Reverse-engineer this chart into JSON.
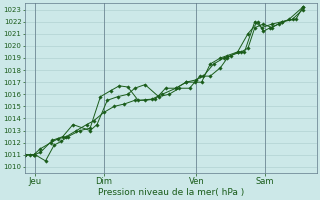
{
  "title": "",
  "xlabel": "Pression niveau de la mer( hPa )",
  "ylabel": "",
  "bg_color": "#cce8e8",
  "grid_color": "#aacccc",
  "line_color": "#1a5c1a",
  "ylim": [
    1009.5,
    1023.5
  ],
  "xlim": [
    0,
    8.5
  ],
  "xtick_labels": [
    "Jeu",
    "Dim",
    "Ven",
    "Sam"
  ],
  "xtick_positions": [
    0.3,
    2.3,
    5.0,
    7.0
  ],
  "vline_positions": [
    0.3,
    2.3,
    5.0,
    7.0
  ],
  "ytick_min": 1010,
  "ytick_max": 1023,
  "line1": [
    [
      0.0,
      1011.0
    ],
    [
      0.15,
      1011.0
    ],
    [
      0.3,
      1011.0
    ],
    [
      0.6,
      1010.5
    ],
    [
      0.85,
      1011.8
    ],
    [
      1.05,
      1012.1
    ],
    [
      1.25,
      1012.5
    ],
    [
      1.6,
      1013.0
    ],
    [
      1.9,
      1013.2
    ],
    [
      2.2,
      1015.8
    ],
    [
      2.5,
      1016.3
    ],
    [
      2.75,
      1016.7
    ],
    [
      3.0,
      1016.6
    ],
    [
      3.3,
      1015.5
    ],
    [
      3.7,
      1015.6
    ],
    [
      4.0,
      1016.0
    ],
    [
      4.4,
      1016.5
    ],
    [
      4.7,
      1017.0
    ],
    [
      4.95,
      1017.0
    ],
    [
      5.15,
      1017.0
    ],
    [
      5.4,
      1018.5
    ],
    [
      5.7,
      1019.0
    ],
    [
      5.9,
      1019.2
    ],
    [
      6.2,
      1019.5
    ],
    [
      6.5,
      1021.0
    ],
    [
      6.8,
      1022.0
    ],
    [
      6.95,
      1021.2
    ],
    [
      7.15,
      1021.5
    ],
    [
      7.4,
      1021.8
    ],
    [
      7.7,
      1022.2
    ],
    [
      8.1,
      1023.2
    ]
  ],
  "line2": [
    [
      0.0,
      1011.0
    ],
    [
      0.25,
      1011.0
    ],
    [
      0.45,
      1011.5
    ],
    [
      0.75,
      1012.0
    ],
    [
      0.95,
      1012.3
    ],
    [
      1.2,
      1012.5
    ],
    [
      1.5,
      1013.0
    ],
    [
      1.8,
      1013.5
    ],
    [
      2.0,
      1013.8
    ],
    [
      2.3,
      1014.5
    ],
    [
      2.6,
      1015.0
    ],
    [
      2.9,
      1015.2
    ],
    [
      3.2,
      1015.5
    ],
    [
      3.5,
      1015.5
    ],
    [
      3.8,
      1015.6
    ],
    [
      4.1,
      1016.5
    ],
    [
      4.4,
      1016.5
    ],
    [
      4.7,
      1017.0
    ],
    [
      5.0,
      1017.2
    ],
    [
      5.2,
      1017.5
    ],
    [
      5.5,
      1018.5
    ],
    [
      5.8,
      1019.0
    ],
    [
      6.0,
      1019.2
    ],
    [
      6.3,
      1019.5
    ],
    [
      6.5,
      1019.8
    ],
    [
      6.7,
      1021.5
    ],
    [
      6.95,
      1021.8
    ],
    [
      7.2,
      1021.5
    ],
    [
      7.5,
      1022.0
    ],
    [
      7.9,
      1022.2
    ],
    [
      8.1,
      1023.2
    ]
  ],
  "line3": [
    [
      0.0,
      1011.0
    ],
    [
      0.25,
      1011.0
    ],
    [
      0.45,
      1011.2
    ],
    [
      0.8,
      1012.2
    ],
    [
      1.1,
      1012.5
    ],
    [
      1.4,
      1013.5
    ],
    [
      1.9,
      1013.0
    ],
    [
      2.1,
      1013.5
    ],
    [
      2.4,
      1015.5
    ],
    [
      2.7,
      1015.8
    ],
    [
      3.0,
      1016.0
    ],
    [
      3.2,
      1016.5
    ],
    [
      3.5,
      1016.8
    ],
    [
      3.9,
      1015.8
    ],
    [
      4.2,
      1016.0
    ],
    [
      4.5,
      1016.5
    ],
    [
      4.8,
      1016.5
    ],
    [
      5.1,
      1017.5
    ],
    [
      5.4,
      1017.5
    ],
    [
      5.7,
      1018.2
    ],
    [
      5.9,
      1019.0
    ],
    [
      6.2,
      1019.5
    ],
    [
      6.4,
      1019.5
    ],
    [
      6.7,
      1022.0
    ],
    [
      6.9,
      1021.5
    ],
    [
      7.2,
      1021.8
    ],
    [
      7.5,
      1022.0
    ],
    [
      7.8,
      1022.2
    ],
    [
      8.1,
      1023.0
    ]
  ],
  "vline_color": "#607888",
  "spine_color": "#607888",
  "tick_label_fontsize": 5.0,
  "xlabel_fontsize": 6.5
}
